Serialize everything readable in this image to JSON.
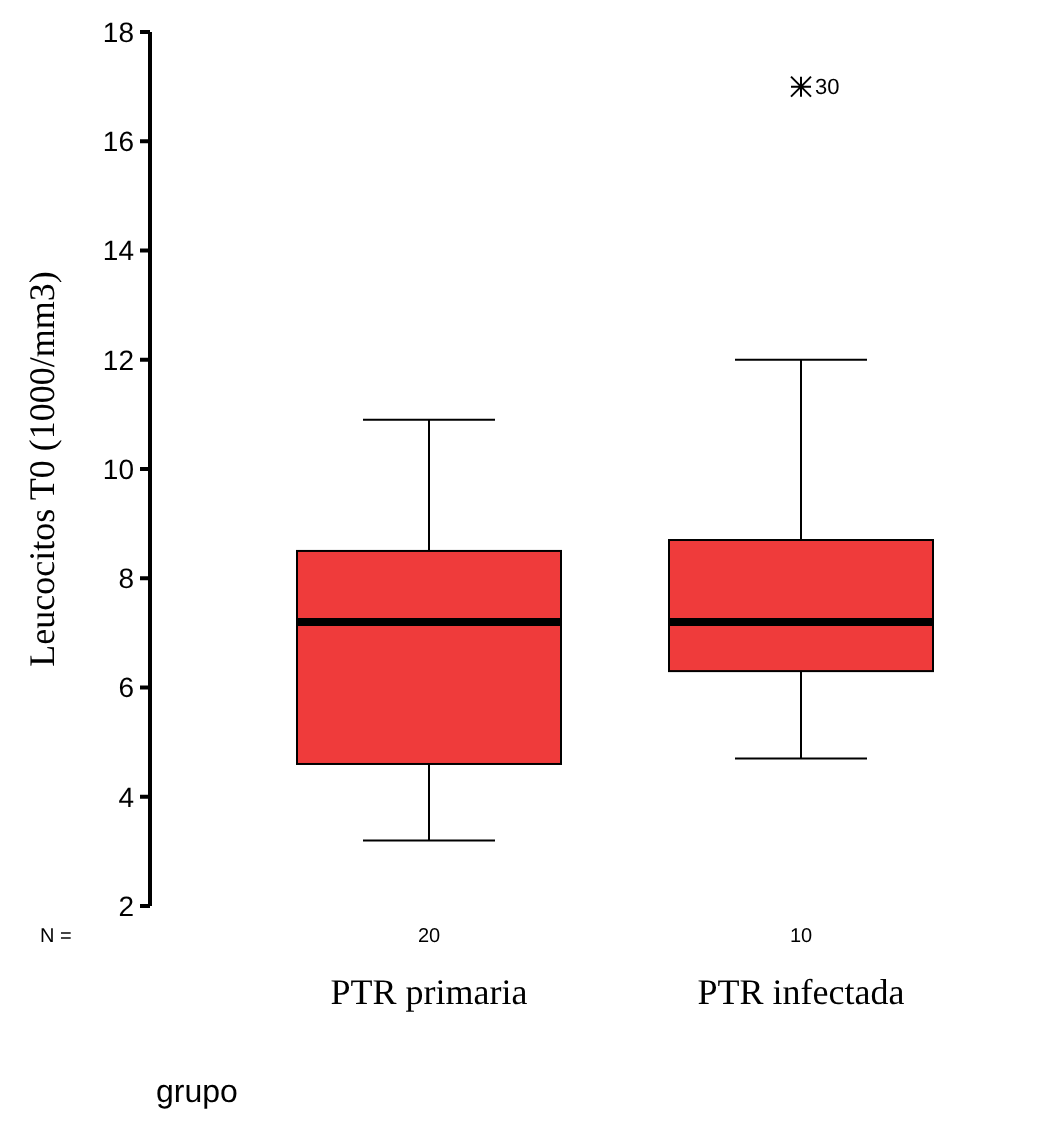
{
  "chart_data": {
    "type": "box",
    "categories": [
      "PTR primaria",
      "PTR infectada"
    ],
    "ylabel": "Leucocitos T0 (1000/mm3)",
    "xlabel": "grupo",
    "ylim": [
      2,
      18
    ],
    "yticks": [
      2,
      4,
      6,
      8,
      10,
      12,
      14,
      16,
      18
    ],
    "color": "#ef3b3b",
    "boxes": [
      {
        "low": 3.2,
        "q1": 4.6,
        "median": 7.2,
        "q3": 8.5,
        "high": 10.9
      },
      {
        "low": 4.7,
        "q1": 6.3,
        "median": 7.2,
        "q3": 8.7,
        "high": 12,
        "outliers": [
          17
        ]
      }
    ],
    "annotations": [
      "30",
      "N =",
      "20",
      "10"
    ]
  }
}
